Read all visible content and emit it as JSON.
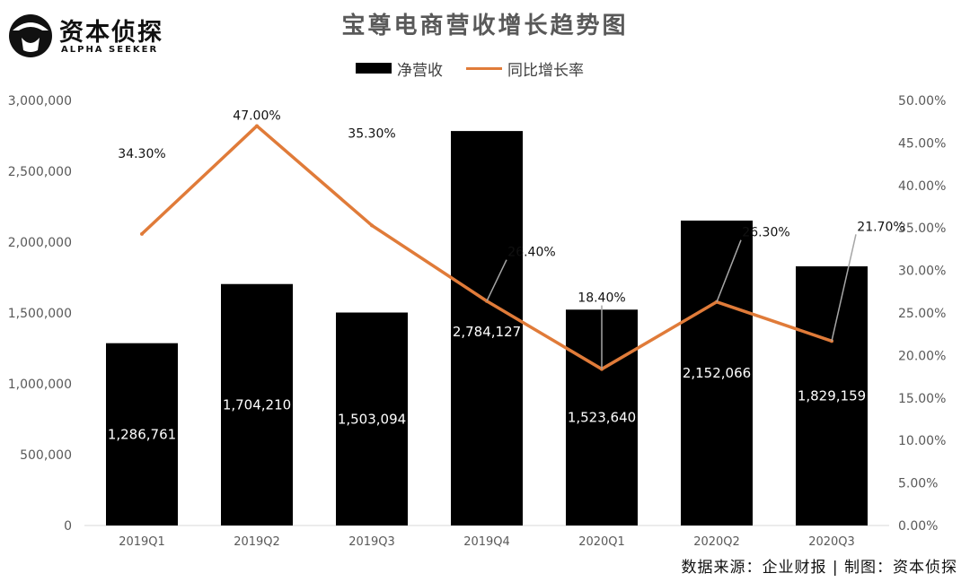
{
  "header": {
    "logo_main": "资本侦探",
    "logo_sub": "ALPHA SEEKER",
    "title": "宝尊电商营收增长趋势图"
  },
  "footer": {
    "source": "数据来源：企业财报 | 制图：资本侦探"
  },
  "colors": {
    "bar": "#000000",
    "line": "#e07b39",
    "leader": "#a6a6a6",
    "axis_text": "#595959"
  },
  "chart_data": {
    "type": "bar",
    "title": "宝尊电商营收增长趋势图",
    "categories": [
      "2019Q1",
      "2019Q2",
      "2019Q3",
      "2019Q4",
      "2020Q1",
      "2020Q2",
      "2020Q3"
    ],
    "series": [
      {
        "name": "净营收",
        "type": "bar",
        "axis": "left",
        "values": [
          1286761,
          1704210,
          1503094,
          2784127,
          1523640,
          2152066,
          1829159
        ],
        "labels": [
          "1,286,761",
          "1,704,210",
          "1,503,094",
          "2,784,127",
          "1,523,640",
          "2,152,066",
          "1,829,159"
        ]
      },
      {
        "name": "同比增长率",
        "type": "line",
        "axis": "right",
        "values": [
          34.3,
          47.0,
          35.3,
          26.4,
          18.4,
          26.3,
          21.7
        ],
        "labels": [
          "34.30%",
          "47.00%",
          "35.30%",
          "26.40%",
          "18.40%",
          "26.30%",
          "21.70%"
        ]
      }
    ],
    "left_axis": {
      "ylim": [
        0,
        3000000
      ],
      "ticks": [
        0,
        500000,
        1000000,
        1500000,
        2000000,
        2500000,
        3000000
      ],
      "tick_labels": [
        "0",
        "500,000",
        "1,000,000",
        "1,500,000",
        "2,000,000",
        "2,500,000",
        "3,000,000"
      ]
    },
    "right_axis": {
      "ylim": [
        0,
        50
      ],
      "ticks": [
        0,
        5,
        10,
        15,
        20,
        25,
        30,
        35,
        40,
        45,
        50
      ],
      "tick_labels": [
        "0.00%",
        "5.00%",
        "10.00%",
        "15.00%",
        "20.00%",
        "25.00%",
        "30.00%",
        "35.00%",
        "40.00%",
        "45.00%",
        "50.00%"
      ]
    },
    "grid": false,
    "legend_position": "top-center"
  }
}
